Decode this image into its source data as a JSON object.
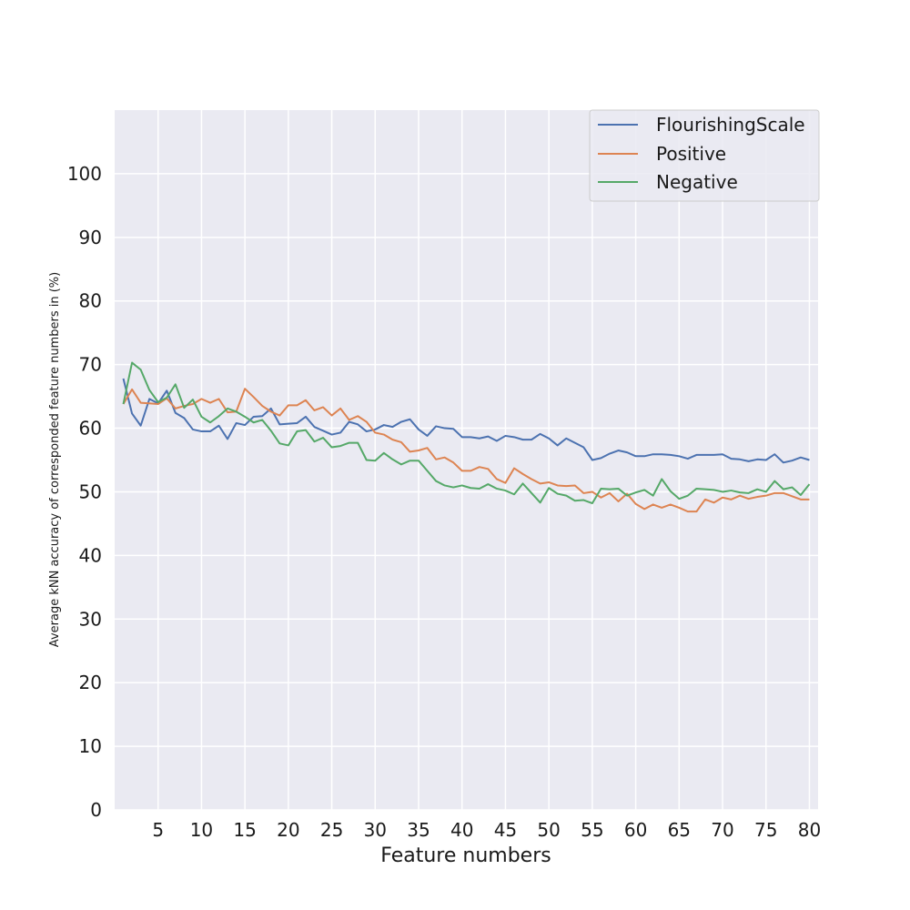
{
  "chart_data": {
    "type": "line",
    "title": "",
    "xlabel": "Feature numbers",
    "ylabel": "Average kNN accuracy of corresponded feature numbers in (%)",
    "xlim": [
      0,
      81
    ],
    "ylim": [
      0,
      110
    ],
    "xticks": [
      5,
      10,
      15,
      20,
      25,
      30,
      35,
      40,
      45,
      50,
      55,
      60,
      65,
      70,
      75,
      80
    ],
    "yticks": [
      0,
      10,
      20,
      30,
      40,
      50,
      60,
      70,
      80,
      90,
      100
    ],
    "grid": true,
    "legend_position": "top-right",
    "x": [
      1,
      2,
      3,
      4,
      5,
      6,
      7,
      8,
      9,
      10,
      11,
      12,
      13,
      14,
      15,
      16,
      17,
      18,
      19,
      20,
      21,
      22,
      23,
      24,
      25,
      26,
      27,
      28,
      29,
      30,
      31,
      32,
      33,
      34,
      35,
      36,
      37,
      38,
      39,
      40,
      41,
      42,
      43,
      44,
      45,
      46,
      47,
      48,
      49,
      50,
      51,
      52,
      53,
      54,
      55,
      56,
      57,
      58,
      59,
      60,
      61,
      62,
      63,
      64,
      65,
      66,
      67,
      68,
      69,
      70,
      71,
      72,
      73,
      74,
      75,
      76,
      77,
      78,
      79,
      80
    ],
    "series": [
      {
        "name": "FlourishingScale",
        "color": "#4c72b0",
        "values": [
          67.8,
          62.3,
          60.4,
          64.6,
          63.9,
          65.9,
          62.4,
          61.6,
          59.8,
          59.5,
          59.5,
          60.4,
          58.3,
          60.8,
          60.5,
          61.8,
          61.9,
          63.1,
          60.6,
          60.7,
          60.8,
          61.8,
          60.2,
          59.6,
          59.0,
          59.3,
          61.0,
          60.6,
          59.5,
          59.8,
          60.5,
          60.2,
          61.0,
          61.4,
          59.8,
          58.8,
          60.3,
          60.0,
          59.9,
          58.6,
          58.6,
          58.4,
          58.7,
          58.0,
          58.8,
          58.6,
          58.2,
          58.2,
          59.1,
          58.4,
          57.3,
          58.4,
          57.7,
          57.0,
          55.0,
          55.3,
          56.0,
          56.5,
          56.2,
          55.6,
          55.6,
          55.9,
          55.9,
          55.8,
          55.6,
          55.2,
          55.8,
          55.8,
          55.8,
          55.9,
          55.2,
          55.1,
          54.8,
          55.1,
          55.0,
          55.9,
          54.6,
          54.9,
          55.4,
          55.0
        ]
      },
      {
        "name": "Positive",
        "color": "#dd8452",
        "values": [
          63.8,
          66.1,
          64.0,
          63.9,
          63.8,
          64.7,
          63.1,
          63.5,
          63.8,
          64.6,
          64.0,
          64.6,
          62.5,
          62.6,
          66.2,
          64.9,
          63.5,
          62.6,
          62.0,
          63.6,
          63.6,
          64.4,
          62.8,
          63.3,
          62.0,
          63.1,
          61.3,
          61.9,
          61.0,
          59.3,
          59.0,
          58.2,
          57.8,
          56.3,
          56.5,
          56.9,
          55.1,
          55.4,
          54.6,
          53.3,
          53.3,
          53.9,
          53.6,
          52.0,
          51.4,
          53.7,
          52.8,
          52.0,
          51.3,
          51.5,
          51.0,
          50.9,
          51.0,
          49.8,
          50.0,
          49.1,
          49.8,
          48.5,
          49.7,
          48.1,
          47.3,
          48.0,
          47.5,
          48.0,
          47.5,
          46.9,
          46.9,
          48.8,
          48.3,
          49.1,
          48.8,
          49.4,
          48.9,
          49.2,
          49.4,
          49.8,
          49.8,
          49.3,
          48.8,
          48.8
        ]
      },
      {
        "name": "Negative",
        "color": "#55a868",
        "values": [
          63.8,
          70.3,
          69.2,
          66.0,
          64.1,
          64.8,
          66.9,
          63.2,
          64.5,
          61.8,
          60.9,
          61.9,
          63.1,
          62.6,
          61.8,
          60.9,
          61.3,
          59.6,
          57.6,
          57.3,
          59.5,
          59.7,
          57.9,
          58.5,
          57.0,
          57.2,
          57.7,
          57.7,
          55.0,
          54.9,
          56.1,
          55.1,
          54.3,
          54.9,
          54.9,
          53.3,
          51.7,
          51.0,
          50.7,
          51.0,
          50.6,
          50.5,
          51.2,
          50.5,
          50.2,
          49.6,
          51.3,
          49.8,
          48.3,
          50.6,
          49.7,
          49.4,
          48.6,
          48.7,
          48.2,
          50.5,
          50.4,
          50.5,
          49.4,
          49.9,
          50.3,
          49.4,
          52.0,
          50.1,
          48.9,
          49.4,
          50.5,
          50.4,
          50.3,
          50.0,
          50.2,
          49.9,
          49.8,
          50.4,
          50.0,
          51.7,
          50.4,
          50.7,
          49.5,
          51.2
        ]
      }
    ]
  }
}
